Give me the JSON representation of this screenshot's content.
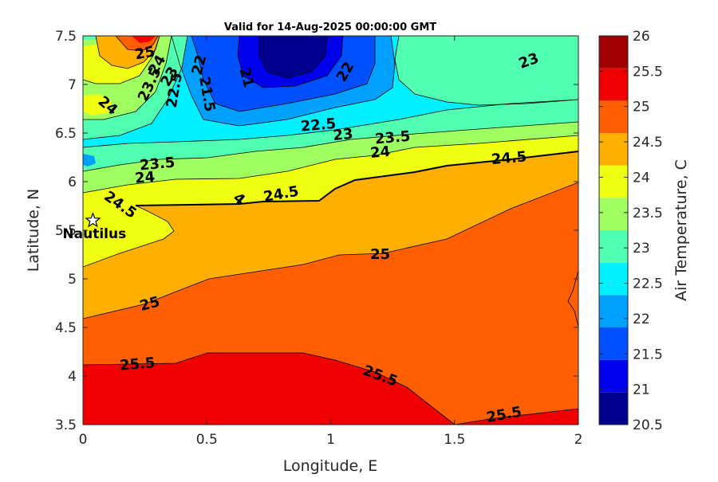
{
  "chart_data": {
    "type": "contour",
    "title": "Valid for 14-Aug-2025 00:00:00 GMT",
    "xlabel": "Longitude, E",
    "ylabel": "Latitude, N",
    "xlim": [
      0,
      2
    ],
    "ylim": [
      3.5,
      7.5
    ],
    "xticks": [
      "0",
      "0.5",
      "1",
      "1.5",
      "2"
    ],
    "yticks": [
      "3.5",
      "4",
      "4.5",
      "5",
      "5.5",
      "6",
      "6.5",
      "7",
      "7.5"
    ],
    "colorbar": {
      "label": "Air Temperature, C",
      "ticks": [
        "20.5",
        "21",
        "21.5",
        "22",
        "22.5",
        "23",
        "23.5",
        "24",
        "24.5",
        "25",
        "25.5",
        "26"
      ],
      "colors": [
        "#00008f",
        "#0000ef",
        "#0050ff",
        "#00a0ff",
        "#00f0ff",
        "#50ffaf",
        "#a0ff60",
        "#f0ff10",
        "#ffaf00",
        "#ff5f00",
        "#f00000",
        "#a00000"
      ]
    },
    "contour_labels": [
      {
        "text": "25",
        "x": 0.25,
        "y": 7.32,
        "angle": -10
      },
      {
        "text": "24",
        "x": 0.3,
        "y": 7.2,
        "angle": -60
      },
      {
        "text": "23.5",
        "x": 0.27,
        "y": 7.0,
        "angle": -65
      },
      {
        "text": "23",
        "x": 0.35,
        "y": 7.08,
        "angle": -60
      },
      {
        "text": "22.5",
        "x": 0.37,
        "y": 6.94,
        "angle": -80
      },
      {
        "text": "22",
        "x": 0.47,
        "y": 7.2,
        "angle": -75
      },
      {
        "text": "21.5",
        "x": 0.5,
        "y": 6.9,
        "angle": 80
      },
      {
        "text": "21",
        "x": 0.66,
        "y": 7.07,
        "angle": 75
      },
      {
        "text": "22",
        "x": 1.06,
        "y": 7.13,
        "angle": -60
      },
      {
        "text": "23",
        "x": 1.8,
        "y": 7.24,
        "angle": -20
      },
      {
        "text": "24",
        "x": 0.1,
        "y": 6.78,
        "angle": 40
      },
      {
        "text": "22.5",
        "x": 0.95,
        "y": 6.58,
        "angle": -5
      },
      {
        "text": "23",
        "x": 1.05,
        "y": 6.48,
        "angle": -5
      },
      {
        "text": "23.5",
        "x": 1.25,
        "y": 6.45,
        "angle": -5
      },
      {
        "text": "24",
        "x": 1.2,
        "y": 6.3,
        "angle": -5
      },
      {
        "text": "23.5",
        "x": 0.3,
        "y": 6.18,
        "angle": -5
      },
      {
        "text": "24",
        "x": 0.25,
        "y": 6.04,
        "angle": -5
      },
      {
        "text": "24.5",
        "x": 1.72,
        "y": 6.24,
        "angle": -5
      },
      {
        "text": "24.5",
        "x": 0.15,
        "y": 5.76,
        "angle": 35
      },
      {
        "text": "4",
        "x": 0.63,
        "y": 5.82,
        "angle": 40
      },
      {
        "text": "24.5",
        "x": 0.8,
        "y": 5.87,
        "angle": -10
      },
      {
        "text": "25",
        "x": 1.2,
        "y": 5.25,
        "angle": 0
      },
      {
        "text": "25",
        "x": 0.27,
        "y": 4.74,
        "angle": -15
      },
      {
        "text": "25.5",
        "x": 0.22,
        "y": 4.12,
        "angle": -5
      },
      {
        "text": "25.5",
        "x": 1.2,
        "y": 4.0,
        "angle": 20
      },
      {
        "text": "25.5",
        "x": 1.7,
        "y": 3.6,
        "angle": -10
      }
    ],
    "markers": [
      {
        "label": "Nautilus",
        "x": 0.04,
        "y": 5.6,
        "symbol": "star"
      }
    ]
  }
}
